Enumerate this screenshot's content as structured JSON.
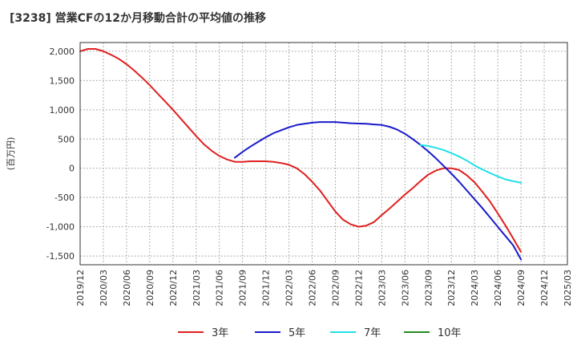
{
  "chart_data": {
    "type": "line",
    "title": "[3238]  営業CFの12か月移動合計の平均値の推移",
    "ylabel": "(百万円)",
    "xlabel": "",
    "ylim": [
      -1650,
      2150
    ],
    "yticks": [
      2000,
      1500,
      1000,
      500,
      0,
      -500,
      -1000,
      -1500
    ],
    "ytick_labels": [
      "2,000",
      "1,500",
      "1,000",
      "500",
      "0",
      "-500",
      "-1,000",
      "-1,500"
    ],
    "xtick_labels": [
      "2019/12",
      "2020/03",
      "2020/06",
      "2020/09",
      "2020/12",
      "2021/03",
      "2021/06",
      "2021/09",
      "2021/12",
      "2022/03",
      "2022/06",
      "2022/09",
      "2022/12",
      "2023/03",
      "2023/06",
      "2023/09",
      "2023/12",
      "2024/03",
      "2024/06",
      "2024/09",
      "2024/12",
      "2025/03"
    ],
    "grid": true,
    "legend_position": "bottom",
    "series": [
      {
        "name": "3年",
        "color": "#e02020",
        "x": [
          "2019/12",
          "2020/01",
          "2020/02",
          "2020/03",
          "2020/04",
          "2020/05",
          "2020/06",
          "2020/07",
          "2020/08",
          "2020/09",
          "2020/10",
          "2020/11",
          "2020/12",
          "2021/01",
          "2021/02",
          "2021/03",
          "2021/04",
          "2021/05",
          "2021/06",
          "2021/07",
          "2021/08",
          "2021/09",
          "2021/10",
          "2021/11",
          "2021/12",
          "2022/01",
          "2022/02",
          "2022/03",
          "2022/04",
          "2022/05",
          "2022/06",
          "2022/07",
          "2022/08",
          "2022/09",
          "2022/10",
          "2022/11",
          "2022/12",
          "2023/01",
          "2023/02",
          "2023/03",
          "2023/04",
          "2023/05",
          "2023/06",
          "2023/07",
          "2023/08",
          "2023/09",
          "2023/10",
          "2023/11",
          "2023/12",
          "2024/01",
          "2024/02",
          "2024/03",
          "2024/04",
          "2024/05",
          "2024/06",
          "2024/07",
          "2024/08",
          "2024/09"
        ],
        "values": [
          2000,
          2040,
          2040,
          2000,
          1940,
          1870,
          1780,
          1670,
          1550,
          1420,
          1280,
          1140,
          1000,
          850,
          700,
          550,
          410,
          300,
          210,
          150,
          110,
          110,
          120,
          120,
          120,
          110,
          90,
          60,
          0,
          -100,
          -230,
          -380,
          -560,
          -740,
          -880,
          -960,
          -1000,
          -980,
          -920,
          -800,
          -690,
          -570,
          -450,
          -340,
          -220,
          -110,
          -40,
          0,
          0,
          -30,
          -120,
          -240,
          -400,
          -570,
          -770,
          -980,
          -1200,
          -1430
        ]
      },
      {
        "name": "5年",
        "color": "#1a1acc",
        "x": [
          "2021/08",
          "2021/09",
          "2021/10",
          "2021/11",
          "2021/12",
          "2022/01",
          "2022/02",
          "2022/03",
          "2022/04",
          "2022/05",
          "2022/06",
          "2022/07",
          "2022/08",
          "2022/09",
          "2022/10",
          "2022/11",
          "2022/12",
          "2023/01",
          "2023/02",
          "2023/03",
          "2023/04",
          "2023/05",
          "2023/06",
          "2023/07",
          "2023/08",
          "2023/09",
          "2023/10",
          "2023/11",
          "2023/12",
          "2024/01",
          "2024/02",
          "2024/03",
          "2024/04",
          "2024/05",
          "2024/06",
          "2024/07",
          "2024/08",
          "2024/09"
        ],
        "values": [
          180,
          280,
          370,
          450,
          530,
          600,
          650,
          700,
          740,
          760,
          780,
          790,
          790,
          790,
          780,
          770,
          765,
          760,
          750,
          740,
          710,
          660,
          590,
          500,
          400,
          290,
          170,
          40,
          -90,
          -230,
          -380,
          -530,
          -680,
          -840,
          -1000,
          -1160,
          -1320,
          -1560
        ]
      },
      {
        "name": "7年",
        "color": "#22e0e8",
        "x": [
          "2023/08",
          "2023/09",
          "2023/10",
          "2023/11",
          "2023/12",
          "2024/01",
          "2024/02",
          "2024/03",
          "2024/04",
          "2024/05",
          "2024/06",
          "2024/07",
          "2024/08",
          "2024/09"
        ],
        "values": [
          400,
          380,
          350,
          310,
          260,
          200,
          130,
          50,
          -20,
          -80,
          -140,
          -190,
          -220,
          -250
        ]
      },
      {
        "name": "10年",
        "color": "#228b22",
        "x": [],
        "values": []
      }
    ]
  }
}
